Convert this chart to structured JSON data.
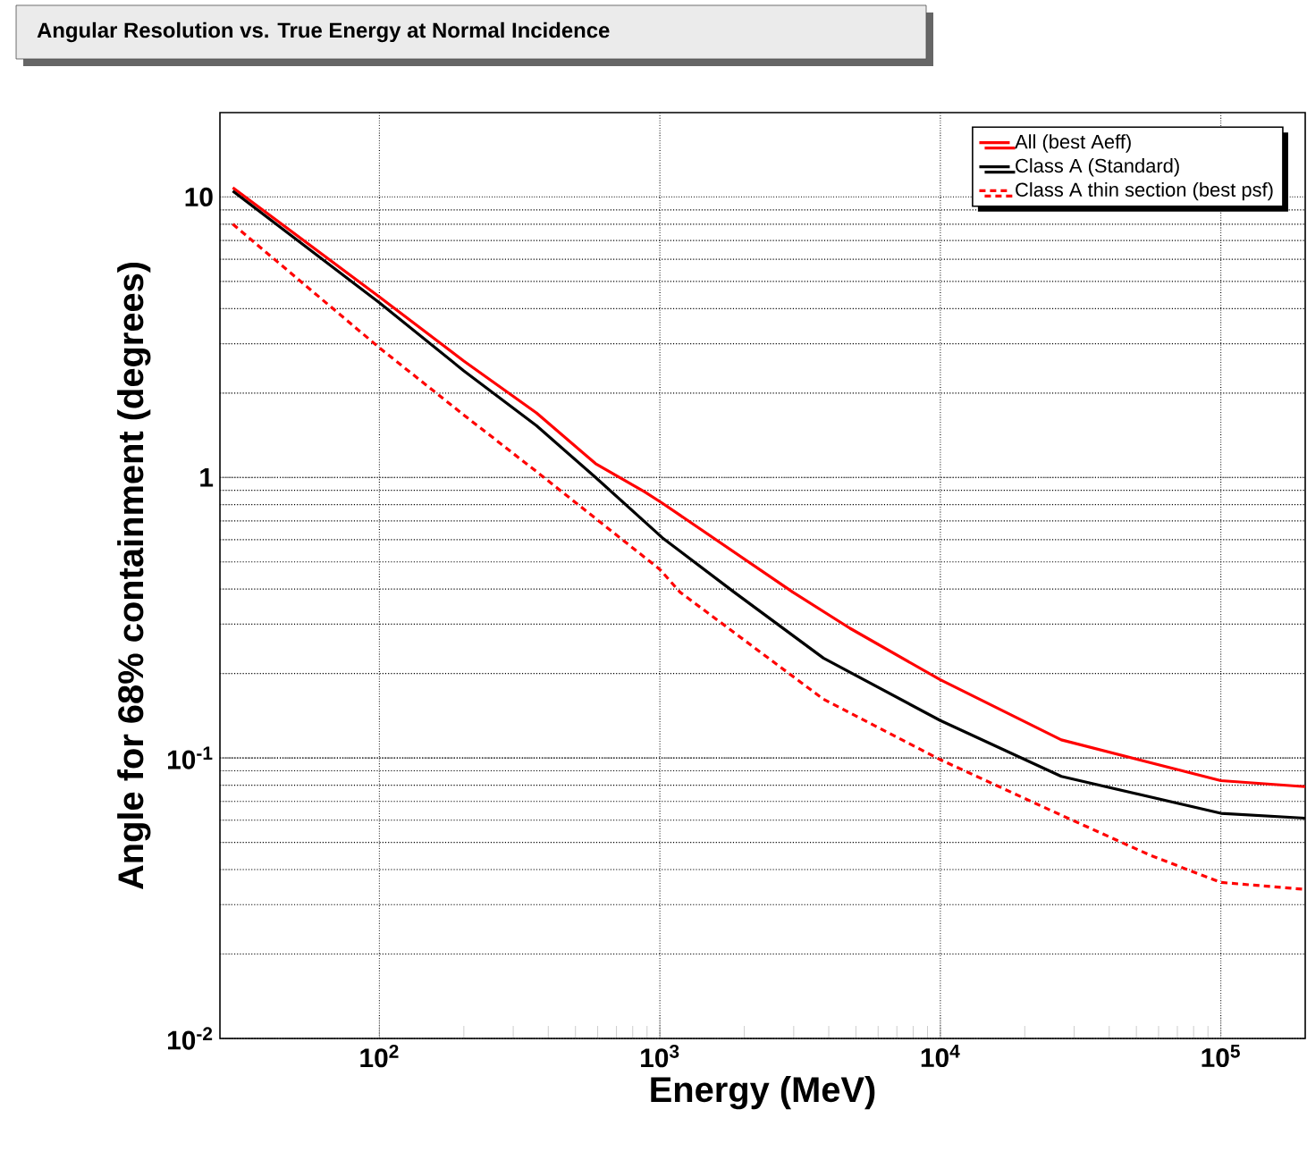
{
  "chart_data": {
    "type": "line",
    "title": "Angular Resolution vs. True Energy at Normal Incidence",
    "xlabel": "Energy (MeV)",
    "ylabel": "Angle for 68% containment (degrees)",
    "log": "xy",
    "grid": true,
    "legend": "top right",
    "marker": "none",
    "xlim": [
      27,
      200000
    ],
    "ylim": [
      0.01,
      20
    ],
    "xticks": [
      {
        "value": 100,
        "label": "10$^{2}$"
      },
      {
        "value": 1000,
        "label": "10$^{3}$"
      },
      {
        "value": 10000,
        "label": "10$^{4}$"
      },
      {
        "value": 100000,
        "label": "10$^{5}$"
      }
    ],
    "yticks": [
      {
        "value": 0.01,
        "label": "10$^{-2}$"
      },
      {
        "value": 0.1,
        "label": "10$^{-1}$"
      },
      1,
      10
    ],
    "series": [
      {
        "name": "All (best Aeff)",
        "color": "#ff0000",
        "line_style": "solid",
        "x": [
          30,
          100,
          200,
          363,
          590,
          880,
          1020,
          2980,
          4760,
          10000,
          27000,
          100000,
          200000
        ],
        "values": [
          10.8,
          4.4,
          2.6,
          1.7,
          1.12,
          0.89,
          0.81,
          0.39,
          0.29,
          0.19,
          0.116,
          0.083,
          0.079
        ]
      },
      {
        "name": "Class A (Standard)",
        "color": "#000000",
        "line_style": "solid",
        "x": [
          30,
          100,
          200,
          363,
          590,
          1020,
          1840,
          3830,
          10000,
          27000,
          100000,
          200000
        ],
        "values": [
          10.5,
          4.2,
          2.4,
          1.53,
          1.0,
          0.61,
          0.39,
          0.227,
          0.136,
          0.086,
          0.0635,
          0.061
        ]
      },
      {
        "name": "Class A thin section (best psf)",
        "color": "#ff0000",
        "line_style": "dashed",
        "x": [
          30,
          100,
          200,
          363,
          1000,
          1180,
          3830,
          10000,
          27000,
          56000,
          100000,
          200000
        ],
        "values": [
          8.0,
          2.9,
          1.67,
          1.05,
          0.47,
          0.39,
          0.162,
          0.0986,
          0.0625,
          0.045,
          0.036,
          0.034
        ]
      }
    ]
  }
}
